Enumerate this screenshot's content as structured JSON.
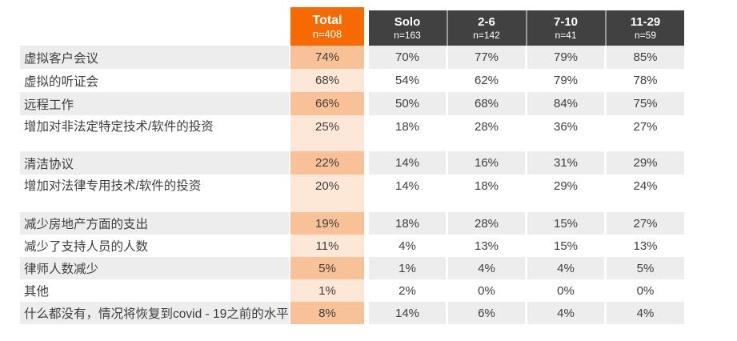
{
  "table": {
    "columns": [
      {
        "label": "Total",
        "n": "n=408"
      },
      {
        "label": "Solo",
        "n": "n=163"
      },
      {
        "label": "2-6",
        "n": "n=142"
      },
      {
        "label": "7-10",
        "n": "n=41"
      },
      {
        "label": "11-29",
        "n": "n=59"
      }
    ],
    "rows": [
      {
        "label": "虚拟客户会议",
        "values": [
          "74%",
          "70%",
          "77%",
          "79%",
          "85%"
        ],
        "shade": "a",
        "size": "normal"
      },
      {
        "label": "虚拟的听证会",
        "values": [
          "68%",
          "54%",
          "62%",
          "79%",
          "78%"
        ],
        "shade": "b",
        "size": "normal"
      },
      {
        "label": "远程工作",
        "values": [
          "66%",
          "50%",
          "68%",
          "84%",
          "75%"
        ],
        "shade": "a",
        "size": "normal"
      },
      {
        "label": "增加对非法定特定技术/软件的投资",
        "values": [
          "25%",
          "18%",
          "28%",
          "36%",
          "27%"
        ],
        "shade": "b",
        "size": "tall45"
      },
      {
        "label": "清洁协议",
        "values": [
          "22%",
          "14%",
          "16%",
          "31%",
          "29%"
        ],
        "shade": "a",
        "size": "normal"
      },
      {
        "label": "增加对法律专用技术/软件的投资",
        "values": [
          "20%",
          "14%",
          "18%",
          "29%",
          "24%"
        ],
        "shade": "b",
        "size": "tall47"
      },
      {
        "label": "减少房地产方面的支出",
        "values": [
          "19%",
          "18%",
          "28%",
          "15%",
          "27%"
        ],
        "shade": "a",
        "size": "h28"
      },
      {
        "label": "减少了支持人员的人数",
        "values": [
          "11%",
          "4%",
          "13%",
          "15%",
          "13%"
        ],
        "shade": "b",
        "size": "h28"
      },
      {
        "label": "律师人数减少",
        "values": [
          "5%",
          "1%",
          "4%",
          "4%",
          "5%"
        ],
        "shade": "a",
        "size": "h28"
      },
      {
        "label": "其他",
        "values": [
          "1%",
          "2%",
          "0%",
          "0%",
          "0%"
        ],
        "shade": "b",
        "size": "h28"
      },
      {
        "label": "什么都没有，情况将恢复到covid - 19之前的水平",
        "values": [
          "8%",
          "14%",
          "6%",
          "4%",
          "4%"
        ],
        "shade": "a",
        "size": "h28"
      }
    ]
  },
  "colors": {
    "total_header": "#F66A00",
    "group_header": "#414141",
    "header_separator": "#9B9B9B",
    "total_cell_dark": "#F9C197",
    "total_cell_light": "#FDE7D6",
    "row_band_gray": "#EDEDED",
    "text": "#3E3E3E",
    "header_text": "#FFFFFF"
  },
  "chart_data": {
    "type": "table",
    "title": "",
    "categories": [
      "虚拟客户会议",
      "虚拟的听证会",
      "远程工作",
      "增加对非法定特定技术/软件的投资",
      "清洁协议",
      "增加对法律专用技术/软件的投资",
      "减少房地产方面的支出",
      "减少了支持人员的人数",
      "律师人数减少",
      "其他",
      "什么都没有，情况将恢复到covid - 19之前的水平"
    ],
    "series": [
      {
        "name": "Total (n=408)",
        "values": [
          74,
          68,
          66,
          25,
          22,
          20,
          19,
          11,
          5,
          1,
          8
        ]
      },
      {
        "name": "Solo (n=163)",
        "values": [
          70,
          54,
          50,
          18,
          14,
          14,
          18,
          4,
          1,
          2,
          14
        ]
      },
      {
        "name": "2-6 (n=142)",
        "values": [
          77,
          62,
          68,
          28,
          16,
          18,
          28,
          13,
          4,
          0,
          6
        ]
      },
      {
        "name": "7-10 (n=41)",
        "values": [
          79,
          79,
          84,
          36,
          31,
          29,
          15,
          15,
          4,
          0,
          4
        ]
      },
      {
        "name": "11-29 (n=59)",
        "values": [
          85,
          78,
          75,
          27,
          29,
          24,
          27,
          13,
          5,
          0,
          4
        ]
      }
    ],
    "value_unit": "%"
  }
}
